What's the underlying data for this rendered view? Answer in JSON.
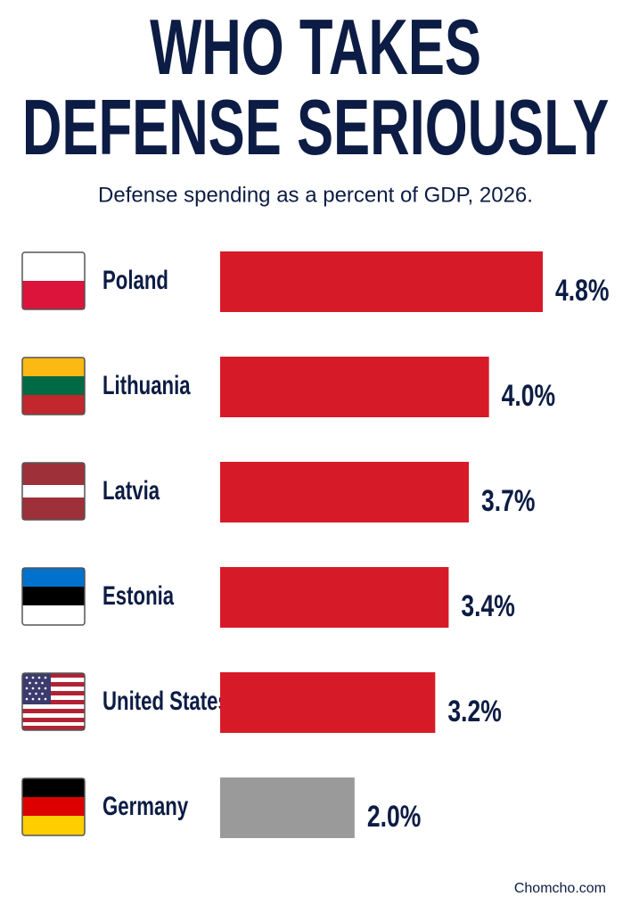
{
  "chart_data": {
    "type": "bar",
    "orientation": "horizontal",
    "title": "WHO TAKES DEFENSE SERIOUSLY",
    "subtitle": "Defense spending as a percent of GDP, 2026.",
    "categories": [
      "Poland",
      "Lithuania",
      "Latvia",
      "Estonia",
      "United States",
      "Germany"
    ],
    "values": [
      4.8,
      4.0,
      3.7,
      3.4,
      3.2,
      2.0
    ],
    "value_labels": [
      "4.8%",
      "4.0%",
      "3.7%",
      "3.4%",
      "3.2%",
      "2.0%"
    ],
    "colors": [
      "#d71a28",
      "#d71a28",
      "#d71a28",
      "#d71a28",
      "#d71a28",
      "#9a9a9a"
    ],
    "source": "Chomcho.com"
  }
}
